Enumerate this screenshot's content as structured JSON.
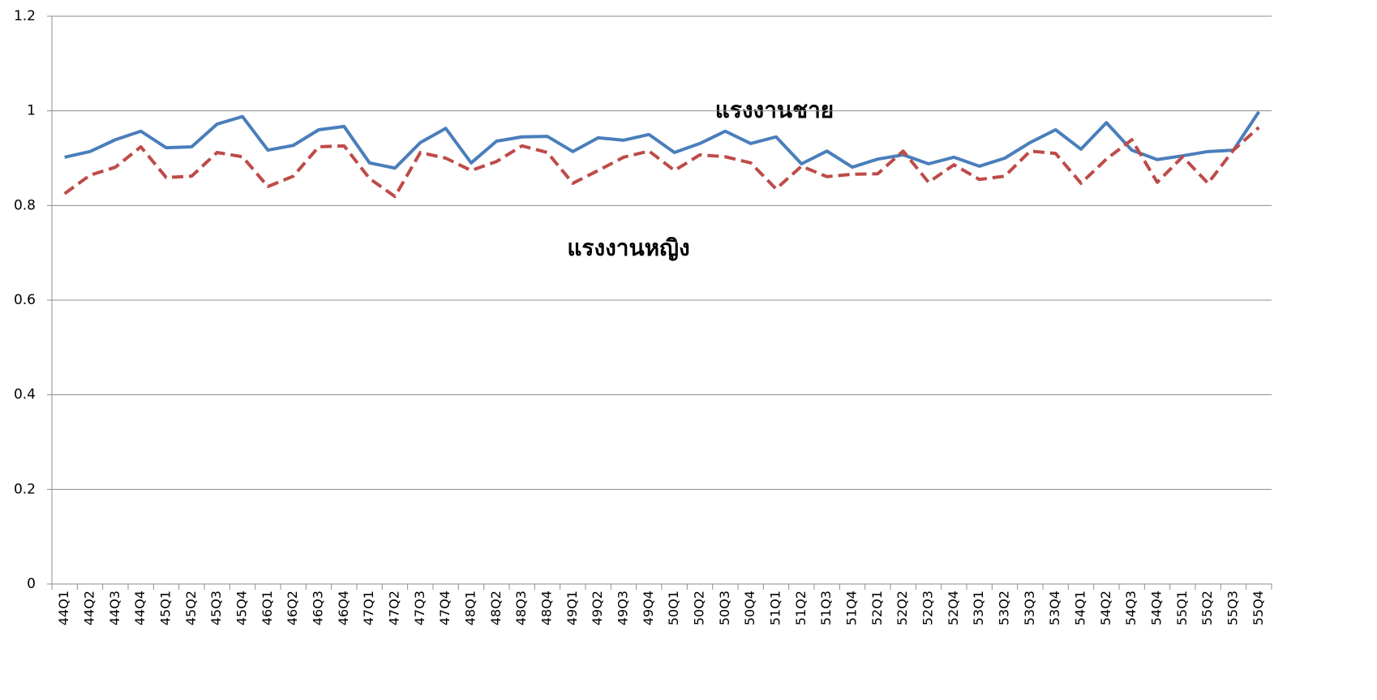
{
  "chart_data": {
    "type": "line",
    "categories": [
      "44Q1",
      "44Q2",
      "44Q3",
      "44Q4",
      "45Q1",
      "45Q2",
      "45Q3",
      "45Q4",
      "46Q1",
      "46Q2",
      "46Q3",
      "46Q4",
      "47Q1",
      "47Q2",
      "47Q3",
      "47Q4",
      "48Q1",
      "48Q2",
      "48Q3",
      "48Q4",
      "49Q1",
      "49Q2",
      "49Q3",
      "49Q4",
      "50Q1",
      "50Q2",
      "50Q3",
      "50Q4",
      "51Q1",
      "51Q2",
      "51Q3",
      "51Q4",
      "52Q1",
      "52Q2",
      "52Q3",
      "52Q4",
      "53Q1",
      "53Q2",
      "53Q3",
      "53Q4",
      "54Q1",
      "54Q2",
      "54Q3",
      "54Q4",
      "55Q1",
      "55Q2",
      "55Q3",
      "55Q4"
    ],
    "series": [
      {
        "name": "แรงงานชาย",
        "color": "#4a7ebb",
        "dashed": false,
        "values": [
          0.902,
          0.914,
          0.939,
          0.957,
          0.922,
          0.924,
          0.972,
          0.988,
          0.917,
          0.927,
          0.96,
          0.967,
          0.89,
          0.879,
          0.933,
          0.963,
          0.89,
          0.936,
          0.945,
          0.946,
          0.914,
          0.943,
          0.938,
          0.95,
          0.912,
          0.931,
          0.957,
          0.931,
          0.945,
          0.888,
          0.915,
          0.881,
          0.898,
          0.907,
          0.888,
          0.902,
          0.883,
          0.9,
          0.933,
          0.96,
          0.919,
          0.975,
          0.917,
          0.897,
          0.905,
          0.914,
          0.917,
          0.998
        ]
      },
      {
        "name": "แรงงานหญิง",
        "color": "#be4b48",
        "dashed": true,
        "values": [
          0.825,
          0.864,
          0.881,
          0.924,
          0.859,
          0.862,
          0.912,
          0.903,
          0.84,
          0.862,
          0.924,
          0.926,
          0.857,
          0.819,
          0.912,
          0.9,
          0.874,
          0.893,
          0.926,
          0.912,
          0.847,
          0.874,
          0.902,
          0.915,
          0.874,
          0.907,
          0.903,
          0.89,
          0.835,
          0.883,
          0.861,
          0.866,
          0.867,
          0.915,
          0.849,
          0.886,
          0.855,
          0.862,
          0.915,
          0.91,
          0.847,
          0.898,
          0.939,
          0.849,
          0.903,
          0.847,
          0.917,
          0.965
        ]
      }
    ],
    "ylim": [
      0,
      1.2
    ],
    "yticks": [
      0,
      0.2,
      0.4,
      0.6,
      0.8,
      1,
      1.2
    ],
    "grid": true
  }
}
